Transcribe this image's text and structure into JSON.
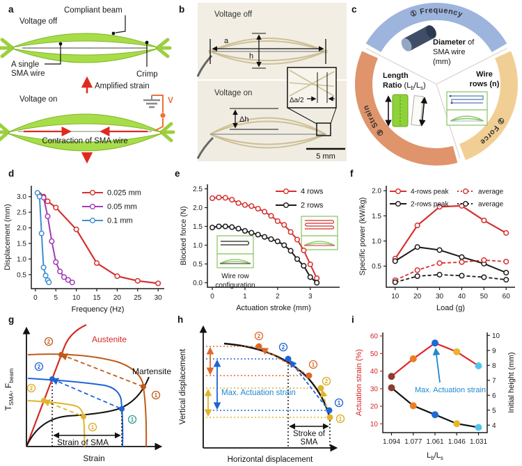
{
  "figure": {
    "panel_labels": [
      "a",
      "b",
      "c",
      "d",
      "e",
      "f",
      "g",
      "h",
      "i"
    ],
    "one": "1",
    "two": "2"
  },
  "panel_a": {
    "voltage_off": "Voltage off",
    "compliant_beam": "Compliant beam",
    "single_1": "A single",
    "single_2": "SMA wire",
    "crimp": "Crimp",
    "amplified_strain": "Amplified strain",
    "voltage_on": "Voltage on",
    "contraction": "Contraction of SMA wire",
    "voltage_symbol": "V",
    "colors": {
      "beam_green": "#a8dd4a",
      "arrow_red": "#e02a20",
      "circuit_orange": "#ef7135"
    }
  },
  "panel_b": {
    "voltage_off": "Voltage off",
    "voltage_on": "Voltage on",
    "dim_a": "a",
    "dim_h": "h",
    "dim_dh": "Δh",
    "dim_da2": "Δa/2",
    "scale_bar": "5 mm"
  },
  "panel_c": {
    "arc_top": "① Frequency",
    "arc_left": "③ Strain",
    "arc_right": "② Force",
    "d_bold": "Diameter",
    "d_rest": " of",
    "d_l2": "SMA wire",
    "d_l3": "(mm)",
    "l_l1": "Length",
    "ratio_bold": "Ratio",
    "ratio_p1": " (L",
    "sub_b": "b",
    "ratio_p2": "/L",
    "sub_s": "s",
    "ratio_p3": ")",
    "w_l1": "Wire",
    "w_l2": "rows (n)",
    "colors": {
      "top_arc": "#9db4dd",
      "left_arc": "#e0946c",
      "right_arc": "#f1cf94"
    }
  },
  "panel_e_inset": {
    "line1": "Wire row",
    "line2": "configuration"
  },
  "panel_g": {
    "austenite": "Austenite",
    "martensite": "Martensite",
    "strain_of_sma": "Strain of SMA",
    "xlabel": "Strain",
    "yl_t": "T",
    "yl_tsub": "SMA",
    "yl_f": ", F",
    "yl_fsub": "beam",
    "colors": {
      "austenite": "#d42a24",
      "martensite": "#111111",
      "orange": "#c05a18",
      "blue": "#1f63d4",
      "yellow": "#e2b32b",
      "teal": "#2f9e8f"
    }
  },
  "panel_h": {
    "ylabel": "Vertical displacement",
    "xlabel": "Horizontal displacement",
    "max_strain": "Max. Actuation strain",
    "stroke_1": "Stroke of",
    "stroke_2": "SMA",
    "colors": {
      "orange": "#dd6828",
      "blue": "#1f63d4",
      "yellow": "#e2b32b",
      "annotation_blue": "#1e88d2"
    }
  },
  "panel_i": {
    "annotation": "Max. Actuation strain",
    "xl_main": "L",
    "xl_sub_b": "b",
    "xl_mid": "/L",
    "xl_sub_s": "s"
  },
  "chart_data": [
    {
      "id": "d",
      "type": "line",
      "xlabel": "Frequency (Hz)",
      "ylabel": "Displacement (mm)",
      "xlim": [
        -1,
        31.5
      ],
      "ylim": [
        0.05,
        3.35
      ],
      "xticks": [
        0,
        5,
        10,
        15,
        20,
        25,
        30
      ],
      "xtick_labels": [
        "0",
        "5",
        "10",
        "15",
        "20",
        "25",
        "30"
      ],
      "yticks": [
        0.5,
        1.0,
        1.5,
        2.0,
        2.5,
        3.0
      ],
      "ytick_labels": [
        "0.5",
        "1.0",
        "1.5",
        "2.0",
        "2.5",
        "3.0"
      ],
      "grid": false,
      "legend_position": "top-right",
      "series": [
        {
          "name": "0.025 mm",
          "color": "#d5302f",
          "marker": "open",
          "width": 2.2,
          "x": [
            1,
            2,
            3,
            5,
            10,
            15,
            20,
            25,
            30
          ],
          "y": [
            3.05,
            3.0,
            2.85,
            2.65,
            1.95,
            0.87,
            0.45,
            0.3,
            0.22
          ]
        },
        {
          "name": "0.05 mm",
          "color": "#a13ab4",
          "marker": "open",
          "width": 2,
          "x": [
            1,
            2,
            3,
            4,
            5,
            6,
            7,
            8,
            9
          ],
          "y": [
            3.03,
            2.97,
            2.37,
            1.57,
            0.9,
            0.6,
            0.42,
            0.33,
            0.25
          ]
        },
        {
          "name": "0.1 mm",
          "color": "#3e8ed0",
          "marker": "open",
          "width": 2,
          "x": [
            0.5,
            1,
            1.5,
            2,
            2.5,
            3,
            3.3
          ],
          "y": [
            3.12,
            3.0,
            1.82,
            0.73,
            0.47,
            0.32,
            0.25
          ]
        }
      ]
    },
    {
      "id": "e",
      "type": "line",
      "xlabel": "Actuation stroke (mm)",
      "ylabel": "Blocked force (N)",
      "xlim": [
        -0.15,
        3.9
      ],
      "ylim": [
        -0.12,
        2.62
      ],
      "xticks": [
        0,
        1,
        2,
        3
      ],
      "xtick_labels": [
        "0",
        "1",
        "2",
        "3"
      ],
      "yticks": [
        0.0,
        0.5,
        1.0,
        1.5,
        2.0,
        2.5
      ],
      "ytick_labels": [
        "0.0",
        "0.5",
        "1.0",
        "1.5",
        "2.0",
        "2.5"
      ],
      "grid": false,
      "legend_position": "top-right",
      "series": [
        {
          "name": "4 rows",
          "color": "#d5302f",
          "marker": "open",
          "width": 2,
          "x": [
            0,
            0.2,
            0.4,
            0.6,
            0.8,
            1.0,
            1.2,
            1.4,
            1.6,
            1.8,
            2.0,
            2.2,
            2.4,
            2.6,
            2.8,
            3.0,
            3.2
          ],
          "y": [
            2.25,
            2.27,
            2.26,
            2.21,
            2.12,
            2.07,
            2.04,
            1.97,
            1.89,
            1.78,
            1.64,
            1.54,
            1.35,
            1.15,
            0.86,
            0.49,
            0.12
          ]
        },
        {
          "name": "2 rows",
          "color": "#1a1a1a",
          "marker": "open",
          "width": 2,
          "x": [
            0,
            0.2,
            0.4,
            0.6,
            0.8,
            1.0,
            1.2,
            1.4,
            1.6,
            1.8,
            2.0,
            2.2,
            2.4,
            2.6,
            2.8,
            3.0,
            3.2
          ],
          "y": [
            1.47,
            1.5,
            1.5,
            1.48,
            1.44,
            1.38,
            1.33,
            1.28,
            1.22,
            1.16,
            1.1,
            1.0,
            0.85,
            0.63,
            0.45,
            0.15,
            0.0
          ]
        }
      ]
    },
    {
      "id": "f",
      "type": "line",
      "xlabel": "Load (g)",
      "ylabel": "Specific power (kW/kg)",
      "xlim": [
        6,
        64
      ],
      "ylim": [
        0.08,
        2.1
      ],
      "xticks": [
        10,
        20,
        30,
        40,
        50,
        60
      ],
      "xtick_labels": [
        "10",
        "20",
        "30",
        "40",
        "50",
        "60"
      ],
      "yticks": [
        0.5,
        1.0,
        1.5,
        2.0
      ],
      "ytick_labels": [
        "0.5",
        "1.0",
        "1.5",
        "2.0"
      ],
      "grid": false,
      "legend_position": "top",
      "series": [
        {
          "name": "4-rows peak",
          "color": "#d5302f",
          "marker": "open",
          "width": 2.2,
          "x": [
            10,
            20,
            30,
            40,
            50,
            60
          ],
          "y": [
            0.65,
            1.31,
            1.68,
            1.7,
            1.41,
            1.16
          ]
        },
        {
          "name": "2-rows peak",
          "color": "#1a1a1a",
          "marker": "open",
          "width": 2,
          "x": [
            10,
            20,
            30,
            40,
            50,
            60
          ],
          "y": [
            0.6,
            0.88,
            0.82,
            0.68,
            0.55,
            0.37
          ]
        },
        {
          "name": "average",
          "color": "#d5302f",
          "marker": "open",
          "width": 1.8,
          "dash": "5 3",
          "x": [
            10,
            20,
            30,
            40,
            50,
            60
          ],
          "y": [
            0.22,
            0.42,
            0.56,
            0.58,
            0.62,
            0.59
          ]
        },
        {
          "name": "average",
          "color": "#1a1a1a",
          "marker": "open",
          "width": 1.8,
          "dash": "5 3",
          "x": [
            10,
            20,
            30,
            40,
            50,
            60
          ],
          "y": [
            0.18,
            0.3,
            0.33,
            0.31,
            0.28,
            0.23
          ]
        }
      ]
    },
    {
      "id": "i",
      "type": "line",
      "xlabel": "",
      "ylabel": "Actuation strain (%)",
      "ylabel2": "Initial height (mm)",
      "axis_color": "#d42222",
      "xlim": [
        -0.4,
        4.4
      ],
      "ylim": [
        5,
        62
      ],
      "ylim2": [
        3.5,
        10.2
      ],
      "xticks": [
        0,
        1,
        2,
        3,
        4
      ],
      "xtick_labels": [
        "1.094",
        "1.077",
        "1.061",
        "1.046",
        "1.031"
      ],
      "yticks": [
        10,
        20,
        30,
        40,
        50,
        60
      ],
      "ytick_labels": [
        "10",
        "20",
        "30",
        "40",
        "50",
        "60"
      ],
      "yticks2": [
        4,
        5,
        6,
        7,
        8,
        9,
        10
      ],
      "ytick_labels2": [
        "4",
        "5",
        "6",
        "7",
        "8",
        "9",
        "10"
      ],
      "grid": false,
      "legend_position": "none",
      "series": [
        {
          "name": "Actuation strain",
          "color": "#e02424",
          "marker": "filled",
          "marker_r": 5,
          "width": 2.2,
          "axis": "left",
          "x": [
            0,
            1,
            2,
            3,
            4
          ],
          "y": [
            37,
            47,
            56,
            51,
            43
          ],
          "marker_colors": [
            "#8e3b32",
            "#ee7d20",
            "#1d6bd5",
            "#e9b42c",
            "#52c5ee"
          ]
        },
        {
          "name": "Initial height",
          "color": "#111111",
          "marker": "filled",
          "marker_r": 5,
          "width": 2.2,
          "axis": "right",
          "x": [
            0,
            1,
            2,
            3,
            4
          ],
          "y": [
            6.5,
            5.3,
            4.7,
            4.1,
            3.85
          ],
          "marker_colors": [
            "#8e3b32",
            "#ee7d20",
            "#1d6bd5",
            "#e9b42c",
            "#52c5ee"
          ]
        }
      ]
    }
  ]
}
